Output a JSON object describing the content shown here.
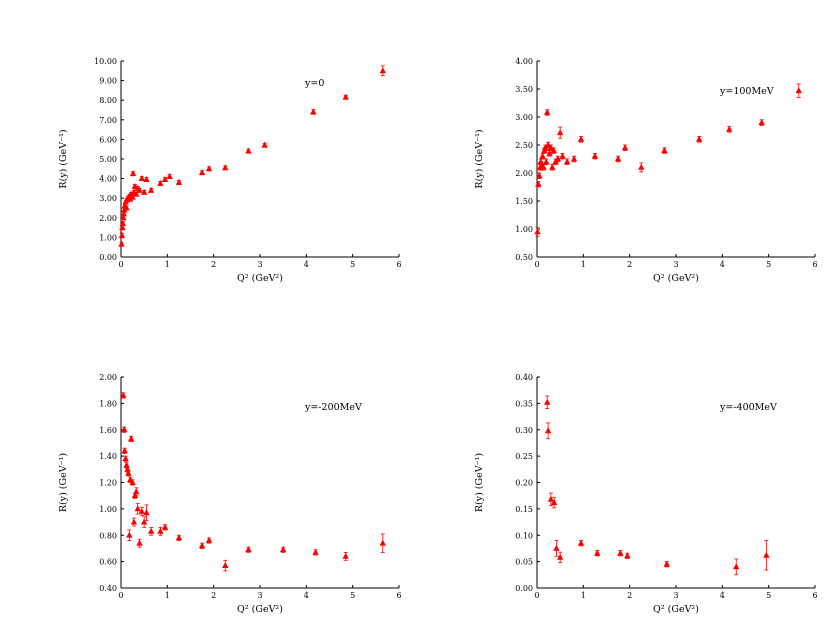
{
  "figure": {
    "marker_color": "#ff0000",
    "axis_color": "#000000",
    "background": "#ffffff"
  },
  "chart_data": [
    {
      "type": "scatter",
      "annotation": "y=0",
      "xlabel": "Q² (GeV²)",
      "ylabel": "R(y) (GeV⁻¹)",
      "xlim": [
        0,
        6
      ],
      "ylim": [
        0,
        10
      ],
      "xticks": [
        0,
        1,
        2,
        3,
        4,
        5,
        6
      ],
      "xtick_labels": [
        "0",
        "1",
        "2",
        "3",
        "4",
        "5",
        "6"
      ],
      "yticks": [
        0,
        1,
        2,
        3,
        4,
        5,
        6,
        7,
        8,
        9,
        10
      ],
      "ytick_labels": [
        "0.00",
        "1.00",
        "2.00",
        "3.00",
        "4.00",
        "5.00",
        "6.00",
        "7.00",
        "8.00",
        "9.00",
        "10.00"
      ],
      "points": [
        {
          "x": 0.01,
          "y": 0.65,
          "err": 0.1
        },
        {
          "x": 0.02,
          "y": 1.1,
          "err": 0.12
        },
        {
          "x": 0.03,
          "y": 1.5,
          "err": 0.12
        },
        {
          "x": 0.04,
          "y": 1.7,
          "err": 0.1
        },
        {
          "x": 0.05,
          "y": 2.0,
          "err": 0.1
        },
        {
          "x": 0.06,
          "y": 2.2,
          "err": 0.1
        },
        {
          "x": 0.07,
          "y": 2.4,
          "err": 0.1
        },
        {
          "x": 0.08,
          "y": 2.6,
          "err": 0.1
        },
        {
          "x": 0.1,
          "y": 2.8,
          "err": 0.1
        },
        {
          "x": 0.12,
          "y": 2.5,
          "err": 0.1
        },
        {
          "x": 0.13,
          "y": 2.9,
          "err": 0.1
        },
        {
          "x": 0.15,
          "y": 3.0,
          "err": 0.1
        },
        {
          "x": 0.18,
          "y": 3.1,
          "err": 0.1
        },
        {
          "x": 0.2,
          "y": 2.95,
          "err": 0.1
        },
        {
          "x": 0.22,
          "y": 3.2,
          "err": 0.1
        },
        {
          "x": 0.25,
          "y": 3.05,
          "err": 0.1
        },
        {
          "x": 0.26,
          "y": 4.25,
          "err": 0.1
        },
        {
          "x": 0.28,
          "y": 3.3,
          "err": 0.1
        },
        {
          "x": 0.3,
          "y": 3.6,
          "err": 0.1
        },
        {
          "x": 0.33,
          "y": 3.2,
          "err": 0.1
        },
        {
          "x": 0.36,
          "y": 3.5,
          "err": 0.1
        },
        {
          "x": 0.4,
          "y": 3.4,
          "err": 0.1
        },
        {
          "x": 0.45,
          "y": 4.0,
          "err": 0.1
        },
        {
          "x": 0.5,
          "y": 3.3,
          "err": 0.1
        },
        {
          "x": 0.55,
          "y": 3.95,
          "err": 0.1
        },
        {
          "x": 0.65,
          "y": 3.4,
          "err": 0.1
        },
        {
          "x": 0.85,
          "y": 3.75,
          "err": 0.1
        },
        {
          "x": 0.95,
          "y": 3.95,
          "err": 0.1
        },
        {
          "x": 1.05,
          "y": 4.1,
          "err": 0.1
        },
        {
          "x": 1.25,
          "y": 3.8,
          "err": 0.1
        },
        {
          "x": 1.75,
          "y": 4.3,
          "err": 0.1
        },
        {
          "x": 1.9,
          "y": 4.5,
          "err": 0.1
        },
        {
          "x": 2.25,
          "y": 4.55,
          "err": 0.1
        },
        {
          "x": 2.75,
          "y": 5.4,
          "err": 0.1
        },
        {
          "x": 3.1,
          "y": 5.7,
          "err": 0.1
        },
        {
          "x": 4.15,
          "y": 7.4,
          "err": 0.12
        },
        {
          "x": 4.85,
          "y": 8.15,
          "err": 0.1
        },
        {
          "x": 5.65,
          "y": 9.5,
          "err": 0.25
        }
      ]
    },
    {
      "type": "scatter",
      "annotation": "y=100MeV",
      "xlabel": "Q² (GeV²)",
      "ylabel": "R(y) (GeV⁻¹)",
      "xlim": [
        0,
        6
      ],
      "ylim": [
        0.5,
        4
      ],
      "xticks": [
        0,
        1,
        2,
        3,
        4,
        5,
        6
      ],
      "xtick_labels": [
        "0",
        "1",
        "2",
        "3",
        "4",
        "5",
        "6"
      ],
      "yticks": [
        0.5,
        1.0,
        1.5,
        2.0,
        2.5,
        3.0,
        3.5,
        4.0
      ],
      "ytick_labels": [
        "0.50",
        "1.00",
        "1.50",
        "2.00",
        "2.50",
        "3.00",
        "3.50",
        "4.00"
      ],
      "points": [
        {
          "x": 0.01,
          "y": 0.95,
          "err": 0.08
        },
        {
          "x": 0.03,
          "y": 1.8,
          "err": 0.05
        },
        {
          "x": 0.05,
          "y": 1.95,
          "err": 0.05
        },
        {
          "x": 0.07,
          "y": 2.1,
          "err": 0.05
        },
        {
          "x": 0.08,
          "y": 2.2,
          "err": 0.05
        },
        {
          "x": 0.1,
          "y": 2.15,
          "err": 0.05
        },
        {
          "x": 0.12,
          "y": 2.3,
          "err": 0.05
        },
        {
          "x": 0.14,
          "y": 2.1,
          "err": 0.05
        },
        {
          "x": 0.16,
          "y": 2.4,
          "err": 0.05
        },
        {
          "x": 0.18,
          "y": 2.45,
          "err": 0.05
        },
        {
          "x": 0.2,
          "y": 2.2,
          "err": 0.05
        },
        {
          "x": 0.22,
          "y": 3.08,
          "err": 0.05
        },
        {
          "x": 0.24,
          "y": 2.5,
          "err": 0.05
        },
        {
          "x": 0.27,
          "y": 2.35,
          "err": 0.05
        },
        {
          "x": 0.3,
          "y": 2.45,
          "err": 0.05
        },
        {
          "x": 0.33,
          "y": 2.1,
          "err": 0.05
        },
        {
          "x": 0.36,
          "y": 2.4,
          "err": 0.05
        },
        {
          "x": 0.4,
          "y": 2.2,
          "err": 0.05
        },
        {
          "x": 0.45,
          "y": 2.25,
          "err": 0.05
        },
        {
          "x": 0.5,
          "y": 2.72,
          "err": 0.1
        },
        {
          "x": 0.55,
          "y": 2.3,
          "err": 0.05
        },
        {
          "x": 0.65,
          "y": 2.2,
          "err": 0.05
        },
        {
          "x": 0.8,
          "y": 2.25,
          "err": 0.05
        },
        {
          "x": 0.95,
          "y": 2.6,
          "err": 0.05
        },
        {
          "x": 1.25,
          "y": 2.3,
          "err": 0.05
        },
        {
          "x": 1.75,
          "y": 2.25,
          "err": 0.05
        },
        {
          "x": 1.9,
          "y": 2.45,
          "err": 0.05
        },
        {
          "x": 2.25,
          "y": 2.1,
          "err": 0.08
        },
        {
          "x": 2.75,
          "y": 2.4,
          "err": 0.05
        },
        {
          "x": 3.5,
          "y": 2.6,
          "err": 0.05
        },
        {
          "x": 4.15,
          "y": 2.78,
          "err": 0.05
        },
        {
          "x": 4.85,
          "y": 2.9,
          "err": 0.05
        },
        {
          "x": 5.65,
          "y": 3.47,
          "err": 0.12
        }
      ]
    },
    {
      "type": "scatter",
      "annotation": "y=-200MeV",
      "xlabel": "Q² (GeV²)",
      "ylabel": "R(y) (GeV⁻¹)",
      "xlim": [
        0,
        6
      ],
      "ylim": [
        0.4,
        2
      ],
      "xticks": [
        0,
        1,
        2,
        3,
        4,
        5,
        6
      ],
      "xtick_labels": [
        "0",
        "1",
        "2",
        "3",
        "4",
        "5",
        "6"
      ],
      "yticks": [
        0.4,
        0.6,
        0.8,
        1.0,
        1.2,
        1.4,
        1.6,
        1.8,
        2.0
      ],
      "ytick_labels": [
        "0.40",
        "0.60",
        "0.80",
        "1.00",
        "1.20",
        "1.40",
        "1.60",
        "1.80",
        "2.00"
      ],
      "points": [
        {
          "x": 0.05,
          "y": 1.86,
          "err": 0.02
        },
        {
          "x": 0.07,
          "y": 1.6,
          "err": 0.02
        },
        {
          "x": 0.08,
          "y": 1.44,
          "err": 0.02
        },
        {
          "x": 0.1,
          "y": 1.38,
          "err": 0.02
        },
        {
          "x": 0.12,
          "y": 1.33,
          "err": 0.02
        },
        {
          "x": 0.14,
          "y": 1.3,
          "err": 0.02
        },
        {
          "x": 0.16,
          "y": 1.27,
          "err": 0.02
        },
        {
          "x": 0.18,
          "y": 0.8,
          "err": 0.04
        },
        {
          "x": 0.2,
          "y": 1.22,
          "err": 0.02
        },
        {
          "x": 0.22,
          "y": 1.53,
          "err": 0.02
        },
        {
          "x": 0.25,
          "y": 1.2,
          "err": 0.02
        },
        {
          "x": 0.28,
          "y": 0.9,
          "err": 0.03
        },
        {
          "x": 0.3,
          "y": 1.1,
          "err": 0.02
        },
        {
          "x": 0.33,
          "y": 1.13,
          "err": 0.03
        },
        {
          "x": 0.36,
          "y": 1.0,
          "err": 0.04
        },
        {
          "x": 0.4,
          "y": 0.74,
          "err": 0.03
        },
        {
          "x": 0.45,
          "y": 0.98,
          "err": 0.03
        },
        {
          "x": 0.5,
          "y": 0.9,
          "err": 0.04
        },
        {
          "x": 0.55,
          "y": 0.97,
          "err": 0.06
        },
        {
          "x": 0.65,
          "y": 0.83,
          "err": 0.03
        },
        {
          "x": 0.85,
          "y": 0.83,
          "err": 0.03
        },
        {
          "x": 0.95,
          "y": 0.86,
          "err": 0.02
        },
        {
          "x": 1.25,
          "y": 0.78,
          "err": 0.02
        },
        {
          "x": 1.75,
          "y": 0.72,
          "err": 0.02
        },
        {
          "x": 1.9,
          "y": 0.76,
          "err": 0.02
        },
        {
          "x": 2.25,
          "y": 0.57,
          "err": 0.04
        },
        {
          "x": 2.75,
          "y": 0.69,
          "err": 0.02
        },
        {
          "x": 3.5,
          "y": 0.69,
          "err": 0.02
        },
        {
          "x": 4.2,
          "y": 0.67,
          "err": 0.02
        },
        {
          "x": 4.85,
          "y": 0.64,
          "err": 0.03
        },
        {
          "x": 5.65,
          "y": 0.74,
          "err": 0.07
        }
      ]
    },
    {
      "type": "scatter",
      "annotation": "y=-400MeV",
      "xlabel": "Q² (GeV²)",
      "ylabel": "R(y) (GeV⁻¹)",
      "xlim": [
        0,
        6
      ],
      "ylim": [
        0,
        0.4
      ],
      "xticks": [
        0,
        1,
        2,
        3,
        4,
        5,
        6
      ],
      "xtick_labels": [
        "0",
        "1",
        "2",
        "3",
        "4",
        "5",
        "6"
      ],
      "yticks": [
        0,
        0.05,
        0.1,
        0.15,
        0.2,
        0.25,
        0.3,
        0.35,
        0.4
      ],
      "ytick_labels": [
        "0.00",
        "0.05",
        "0.10",
        "0.15",
        "0.20",
        "0.25",
        "0.30",
        "0.35",
        "0.40"
      ],
      "points": [
        {
          "x": 0.22,
          "y": 0.352,
          "err": 0.012
        },
        {
          "x": 0.24,
          "y": 0.298,
          "err": 0.015
        },
        {
          "x": 0.3,
          "y": 0.168,
          "err": 0.012
        },
        {
          "x": 0.37,
          "y": 0.162,
          "err": 0.01
        },
        {
          "x": 0.42,
          "y": 0.075,
          "err": 0.015
        },
        {
          "x": 0.5,
          "y": 0.058,
          "err": 0.01
        },
        {
          "x": 0.95,
          "y": 0.085,
          "err": 0.005
        },
        {
          "x": 1.3,
          "y": 0.066,
          "err": 0.005
        },
        {
          "x": 1.8,
          "y": 0.066,
          "err": 0.005
        },
        {
          "x": 1.95,
          "y": 0.061,
          "err": 0.005
        },
        {
          "x": 2.8,
          "y": 0.045,
          "err": 0.005
        },
        {
          "x": 4.3,
          "y": 0.04,
          "err": 0.015
        },
        {
          "x": 4.95,
          "y": 0.062,
          "err": 0.028
        }
      ]
    }
  ]
}
